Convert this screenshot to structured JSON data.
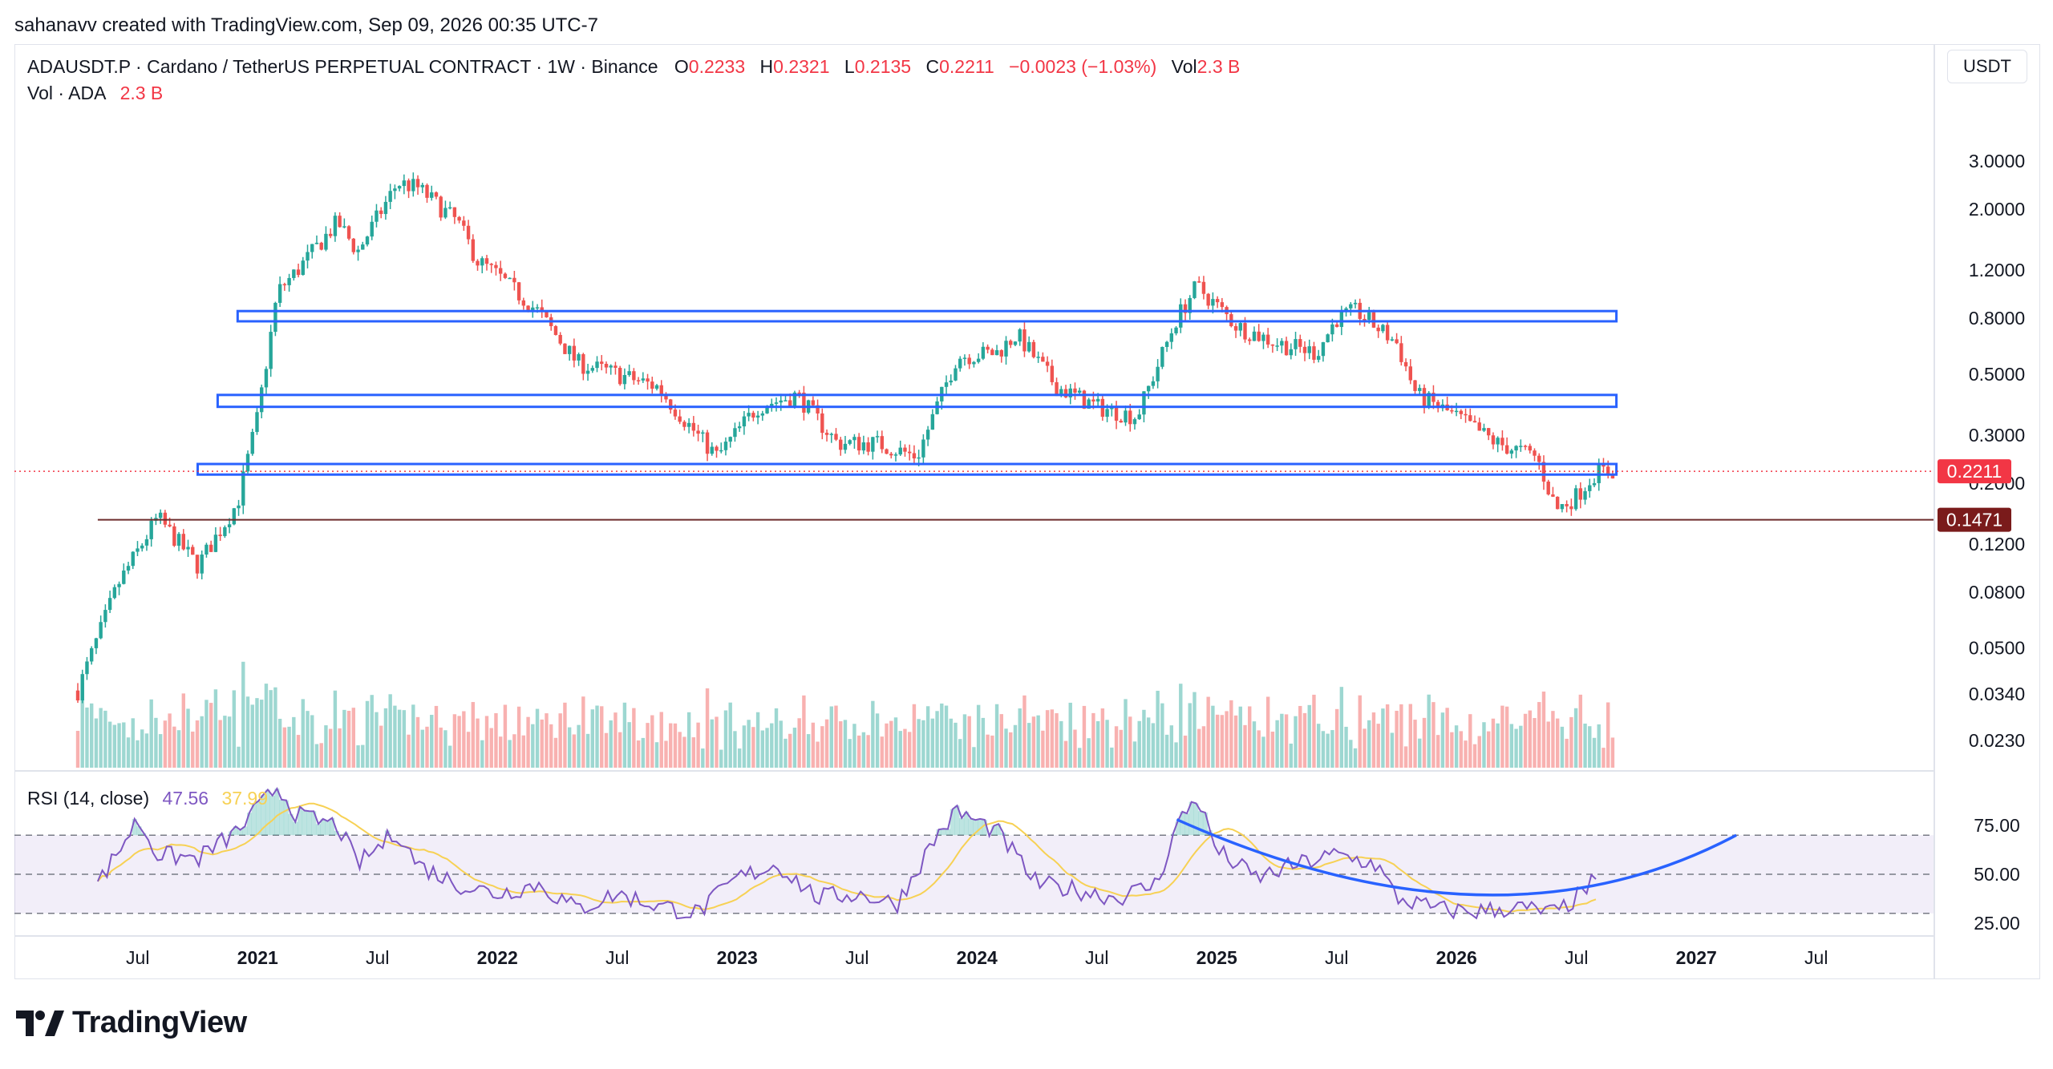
{
  "credit": "sahanavv created with TradingView.com, Sep 09, 2026 00:35 UTC-7",
  "header": {
    "symbol": "ADAUSDT.P · Cardano / TetherUS PERPETUAL CONTRACT · 1W · Binance",
    "o_label": "O",
    "o_value": "0.2233",
    "h_label": "H",
    "h_value": "0.2321",
    "l_label": "L",
    "l_value": "0.2135",
    "c_label": "C",
    "c_value": "0.2211",
    "change": "−0.0023 (−1.03%)",
    "vol_label": "Vol",
    "vol_value": "2.3 B",
    "vol_row_label": "Vol · ADA",
    "vol_row_value": "2.3 B"
  },
  "unit": "USDT",
  "rsi": {
    "label": "RSI (14, close)",
    "rsi_value": "47.56",
    "ma_value": "37.99"
  },
  "brand": "TradingView",
  "colors": {
    "up": "#26a69a",
    "down": "#ef5350",
    "box": "#2962ff",
    "rsi": "#7e57c2",
    "rsi_ma": "#f7d154",
    "support": "#6d2c2c",
    "last_badge": "#f23645",
    "level_badge": "#7a1b1b"
  },
  "chart_data": [
    {
      "type": "candlestick",
      "title": "ADAUSDT.P · Cardano / TetherUS PERPETUAL CONTRACT · 1W · Binance",
      "y_scale": "log",
      "y_ticks": [
        "3.0000",
        "2.0000",
        "1.2000",
        "0.8000",
        "0.5000",
        "0.3000",
        "0.2000",
        "0.1200",
        "0.0800",
        "0.0500",
        "0.0340",
        "0.0230"
      ],
      "x_ticks": [
        "Jul",
        "2021",
        "Jul",
        "2022",
        "Jul",
        "2023",
        "Jul",
        "2024",
        "Jul",
        "2025",
        "Jul",
        "2026",
        "Jul",
        "2027",
        "Jul"
      ],
      "last_price": "0.2211",
      "marked_level": "0.1471",
      "ohlc_last": {
        "open": 0.2233,
        "high": 0.2321,
        "low": 0.2135,
        "close": 0.2211
      },
      "path": [
        [
          "2020-04",
          0.035
        ],
        [
          "2020-06",
          0.085
        ],
        [
          "2020-08",
          0.15
        ],
        [
          "2020-10",
          0.1
        ],
        [
          "2020-12",
          0.17
        ],
        [
          "2021-01",
          0.35
        ],
        [
          "2021-02",
          1.0
        ],
        [
          "2021-03",
          1.2
        ],
        [
          "2021-05",
          1.8
        ],
        [
          "2021-06",
          1.4
        ],
        [
          "2021-08",
          2.5
        ],
        [
          "2021-09",
          2.4
        ],
        [
          "2021-11",
          1.8
        ],
        [
          "2021-12",
          1.3
        ],
        [
          "2022-01",
          1.15
        ],
        [
          "2022-03",
          0.85
        ],
        [
          "2022-05",
          0.55
        ],
        [
          "2022-07",
          0.5
        ],
        [
          "2022-09",
          0.45
        ],
        [
          "2022-11",
          0.3
        ],
        [
          "2022-12",
          0.25
        ],
        [
          "2023-02",
          0.38
        ],
        [
          "2023-04",
          0.42
        ],
        [
          "2023-06",
          0.28
        ],
        [
          "2023-08",
          0.28
        ],
        [
          "2023-10",
          0.25
        ],
        [
          "2023-12",
          0.58
        ],
        [
          "2024-02",
          0.6
        ],
        [
          "2024-03",
          0.7
        ],
        [
          "2024-05",
          0.45
        ],
        [
          "2024-07",
          0.38
        ],
        [
          "2024-09",
          0.35
        ],
        [
          "2024-11",
          0.8
        ],
        [
          "2024-12",
          1.05
        ],
        [
          "2025-02",
          0.75
        ],
        [
          "2025-04",
          0.65
        ],
        [
          "2025-06",
          0.6
        ],
        [
          "2025-07",
          0.8
        ],
        [
          "2025-08",
          0.85
        ],
        [
          "2025-10",
          0.65
        ],
        [
          "2025-11",
          0.42
        ],
        [
          "2026-01",
          0.35
        ],
        [
          "2026-03",
          0.28
        ],
        [
          "2026-05",
          0.25
        ],
        [
          "2026-06",
          0.16
        ],
        [
          "2026-07",
          0.18
        ],
        [
          "2026-08",
          0.2211
        ]
      ],
      "boxes": [
        {
          "from": "2020-12",
          "to": "2026-09",
          "low": 0.78,
          "high": 0.85
        },
        {
          "from": "2020-11",
          "to": "2026-09",
          "low": 0.38,
          "high": 0.42
        },
        {
          "from": "2020-10",
          "to": "2026-09",
          "low": 0.215,
          "high": 0.235
        }
      ],
      "support_line": {
        "from": "2020-05",
        "value": 0.1471
      }
    },
    {
      "type": "bar",
      "title": "Vol · ADA",
      "last": "2.3 B",
      "note": "weekly volume bars colored by candle direction"
    },
    {
      "type": "line",
      "title": "RSI (14, close)",
      "y_ticks": [
        "75.00",
        "50.00",
        "25.00"
      ],
      "band": [
        30,
        70
      ],
      "series": [
        {
          "name": "RSI",
          "last": 47.56
        },
        {
          "name": "MA",
          "last": 37.99
        }
      ],
      "path": [
        [
          "2020-05",
          45
        ],
        [
          "2020-07",
          78
        ],
        [
          "2020-08",
          60
        ],
        [
          "2020-10",
          58
        ],
        [
          "2020-12",
          72
        ],
        [
          "2021-02",
          95
        ],
        [
          "2021-03",
          80
        ],
        [
          "2021-05",
          75
        ],
        [
          "2021-06",
          55
        ],
        [
          "2021-08",
          72
        ],
        [
          "2021-09",
          55
        ],
        [
          "2021-11",
          45
        ],
        [
          "2022-01",
          40
        ],
        [
          "2022-03",
          45
        ],
        [
          "2022-05",
          32
        ],
        [
          "2022-07",
          40
        ],
        [
          "2022-09",
          34
        ],
        [
          "2022-11",
          30
        ],
        [
          "2023-01",
          48
        ],
        [
          "2023-03",
          55
        ],
        [
          "2023-05",
          38
        ],
        [
          "2023-07",
          40
        ],
        [
          "2023-09",
          35
        ],
        [
          "2023-11",
          70
        ],
        [
          "2023-12",
          82
        ],
        [
          "2024-02",
          72
        ],
        [
          "2024-04",
          45
        ],
        [
          "2024-06",
          42
        ],
        [
          "2024-08",
          38
        ],
        [
          "2024-10",
          45
        ],
        [
          "2024-11",
          75
        ],
        [
          "2024-12",
          90
        ],
        [
          "2025-01",
          62
        ],
        [
          "2025-03",
          48
        ],
        [
          "2025-05",
          55
        ],
        [
          "2025-07",
          60
        ],
        [
          "2025-09",
          55
        ],
        [
          "2025-10",
          38
        ],
        [
          "2025-12",
          32
        ],
        [
          "2026-02",
          31
        ],
        [
          "2026-04",
          33
        ],
        [
          "2026-06",
          30
        ],
        [
          "2026-07",
          38
        ],
        [
          "2026-08",
          47.56
        ]
      ],
      "arc": {
        "from": "2024-11",
        "bottom": "2026-03",
        "to": "2027-03"
      }
    }
  ]
}
